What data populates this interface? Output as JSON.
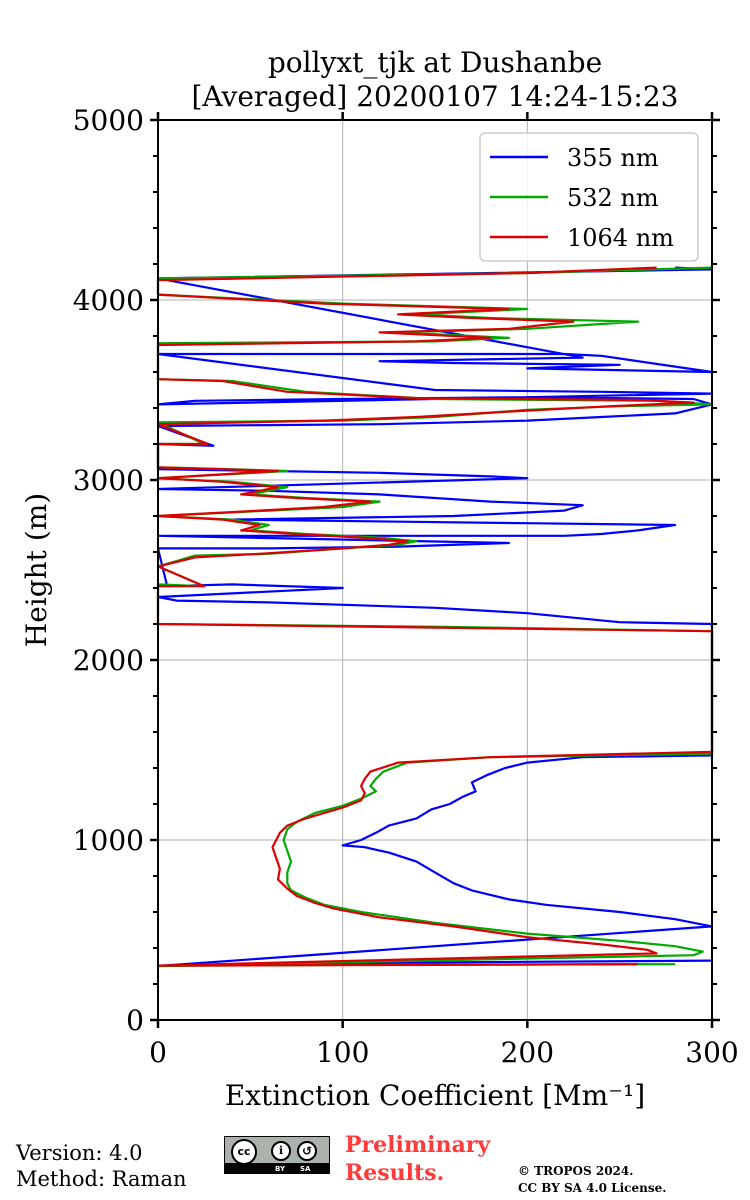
{
  "chart_data": {
    "type": "line",
    "title": "pollyxt_tjk at Dushanbe",
    "subtitle": "[Averaged] 20200107 14:24-15:23",
    "xlabel": "Extinction Coefficient [Mm⁻¹]",
    "ylabel": "Height (m)",
    "xlim": [
      0,
      300
    ],
    "ylim": [
      0,
      5000
    ],
    "xticks": [
      "0",
      "100",
      "200",
      "300"
    ],
    "yticks": [
      "0",
      "1000",
      "2000",
      "3000",
      "4000",
      "5000"
    ],
    "xtick_values": [
      0,
      100,
      200,
      300
    ],
    "ytick_values": [
      0,
      1000,
      2000,
      3000,
      4000,
      5000
    ],
    "grid": true,
    "legend_position": "top-right",
    "series": [
      {
        "name": "355 nm",
        "color": "#0000ff",
        "points": [
          [
            300,
            330
          ],
          [
            150,
            320
          ],
          [
            20,
            305
          ],
          [
            0,
            300
          ],
          [
            300,
            520
          ],
          [
            280,
            560
          ],
          [
            250,
            600
          ],
          [
            210,
            640
          ],
          [
            190,
            670
          ],
          [
            170,
            720
          ],
          [
            160,
            760
          ],
          [
            150,
            820
          ],
          [
            140,
            880
          ],
          [
            125,
            930
          ],
          [
            112,
            960
          ],
          [
            100,
            970
          ],
          [
            110,
            1000
          ],
          [
            118,
            1040
          ],
          [
            125,
            1080
          ],
          [
            140,
            1120
          ],
          [
            148,
            1170
          ],
          [
            158,
            1200
          ],
          [
            165,
            1240
          ],
          [
            172,
            1270
          ],
          [
            170,
            1320
          ],
          [
            178,
            1360
          ],
          [
            188,
            1400
          ],
          [
            200,
            1430
          ],
          [
            230,
            1460
          ],
          [
            300,
            1470
          ],
          [
            300,
            2200
          ],
          [
            250,
            2210
          ],
          [
            200,
            2260
          ],
          [
            150,
            2290
          ],
          [
            60,
            2320
          ],
          [
            10,
            2330
          ],
          [
            0,
            2350
          ],
          [
            100,
            2400
          ],
          [
            40,
            2420
          ],
          [
            5,
            2410
          ],
          [
            0,
            2620
          ],
          [
            60,
            2620
          ],
          [
            130,
            2630
          ],
          [
            190,
            2650
          ],
          [
            0,
            2690
          ],
          [
            220,
            2690
          ],
          [
            240,
            2700
          ],
          [
            260,
            2720
          ],
          [
            280,
            2750
          ],
          [
            200,
            2760
          ],
          [
            40,
            2780
          ],
          [
            160,
            2800
          ],
          [
            220,
            2830
          ],
          [
            230,
            2860
          ],
          [
            180,
            2880
          ],
          [
            150,
            2900
          ],
          [
            120,
            2920
          ],
          [
            60,
            2940
          ],
          [
            0,
            2950
          ],
          [
            200,
            3010
          ],
          [
            180,
            3020
          ],
          [
            120,
            3040
          ],
          [
            0,
            3060
          ],
          [
            0,
            3200
          ],
          [
            30,
            3190
          ],
          [
            0,
            3300
          ],
          [
            120,
            3310
          ],
          [
            200,
            3330
          ],
          [
            240,
            3350
          ],
          [
            280,
            3370
          ],
          [
            300,
            3420
          ],
          [
            290,
            3450
          ],
          [
            200,
            3460
          ],
          [
            100,
            3450
          ],
          [
            20,
            3440
          ],
          [
            0,
            3420
          ],
          [
            300,
            3480
          ],
          [
            240,
            3490
          ],
          [
            150,
            3500
          ],
          [
            0,
            3700
          ],
          [
            220,
            3700
          ],
          [
            240,
            3690
          ],
          [
            300,
            3600
          ],
          [
            200,
            3620
          ],
          [
            250,
            3640
          ],
          [
            160,
            3650
          ],
          [
            120,
            3660
          ],
          [
            230,
            3680
          ],
          [
            0,
            4120
          ],
          [
            300,
            4170
          ],
          [
            280,
            4180
          ]
        ]
      },
      {
        "name": "532 nm",
        "color": "#00aa00",
        "points": [
          [
            280,
            310
          ],
          [
            150,
            308
          ],
          [
            30,
            303
          ],
          [
            0,
            300
          ],
          [
            290,
            360
          ],
          [
            295,
            380
          ],
          [
            280,
            410
          ],
          [
            250,
            440
          ],
          [
            200,
            480
          ],
          [
            150,
            540
          ],
          [
            110,
            600
          ],
          [
            90,
            640
          ],
          [
            80,
            680
          ],
          [
            72,
            720
          ],
          [
            70,
            760
          ],
          [
            70,
            820
          ],
          [
            72,
            880
          ],
          [
            70,
            940
          ],
          [
            68,
            1000
          ],
          [
            70,
            1060
          ],
          [
            75,
            1100
          ],
          [
            85,
            1150
          ],
          [
            100,
            1190
          ],
          [
            110,
            1230
          ],
          [
            118,
            1270
          ],
          [
            115,
            1300
          ],
          [
            118,
            1340
          ],
          [
            122,
            1380
          ],
          [
            135,
            1430
          ],
          [
            180,
            1460
          ],
          [
            300,
            1480
          ],
          [
            300,
            2160
          ],
          [
            150,
            2185
          ],
          [
            0,
            2200
          ],
          [
            0,
            2420
          ],
          [
            25,
            2410
          ],
          [
            0,
            2520
          ],
          [
            10,
            2550
          ],
          [
            20,
            2580
          ],
          [
            60,
            2590
          ],
          [
            100,
            2620
          ],
          [
            130,
            2640
          ],
          [
            140,
            2660
          ],
          [
            120,
            2680
          ],
          [
            80,
            2700
          ],
          [
            50,
            2720
          ],
          [
            60,
            2750
          ],
          [
            40,
            2780
          ],
          [
            0,
            2800
          ],
          [
            60,
            2830
          ],
          [
            100,
            2850
          ],
          [
            120,
            2880
          ],
          [
            80,
            2900
          ],
          [
            50,
            2920
          ],
          [
            70,
            2960
          ],
          [
            40,
            2990
          ],
          [
            0,
            3010
          ],
          [
            70,
            3050
          ],
          [
            40,
            3060
          ],
          [
            0,
            3070
          ],
          [
            0,
            3200
          ],
          [
            25,
            3200
          ],
          [
            0,
            3320
          ],
          [
            100,
            3330
          ],
          [
            150,
            3350
          ],
          [
            200,
            3390
          ],
          [
            250,
            3410
          ],
          [
            300,
            3420
          ],
          [
            270,
            3440
          ],
          [
            150,
            3450
          ],
          [
            80,
            3490
          ],
          [
            40,
            3550
          ],
          [
            0,
            3560
          ],
          [
            0,
            3760
          ],
          [
            150,
            3770
          ],
          [
            190,
            3790
          ],
          [
            130,
            3820
          ],
          [
            200,
            3840
          ],
          [
            260,
            3880
          ],
          [
            180,
            3900
          ],
          [
            140,
            3920
          ],
          [
            200,
            3950
          ],
          [
            100,
            3980
          ],
          [
            40,
            4010
          ],
          [
            0,
            4030
          ],
          [
            0,
            4120
          ],
          [
            200,
            4150
          ],
          [
            300,
            4180
          ]
        ]
      },
      {
        "name": "1064 nm",
        "color": "#dd0000",
        "points": [
          [
            260,
            310
          ],
          [
            150,
            306
          ],
          [
            30,
            303
          ],
          [
            0,
            302
          ],
          [
            270,
            370
          ],
          [
            265,
            390
          ],
          [
            240,
            420
          ],
          [
            200,
            460
          ],
          [
            160,
            520
          ],
          [
            120,
            570
          ],
          [
            95,
            620
          ],
          [
            85,
            650
          ],
          [
            75,
            690
          ],
          [
            70,
            730
          ],
          [
            65,
            780
          ],
          [
            66,
            840
          ],
          [
            64,
            900
          ],
          [
            62,
            960
          ],
          [
            64,
            1000
          ],
          [
            66,
            1040
          ],
          [
            70,
            1080
          ],
          [
            80,
            1120
          ],
          [
            90,
            1150
          ],
          [
            100,
            1180
          ],
          [
            110,
            1220
          ],
          [
            112,
            1260
          ],
          [
            110,
            1300
          ],
          [
            112,
            1340
          ],
          [
            115,
            1380
          ],
          [
            130,
            1430
          ],
          [
            180,
            1460
          ],
          [
            300,
            1490
          ],
          [
            300,
            2160
          ],
          [
            150,
            2180
          ],
          [
            0,
            2200
          ],
          [
            0,
            2410
          ],
          [
            25,
            2410
          ],
          [
            0,
            2520
          ],
          [
            12,
            2550
          ],
          [
            20,
            2570
          ],
          [
            55,
            2590
          ],
          [
            100,
            2620
          ],
          [
            125,
            2640
          ],
          [
            135,
            2660
          ],
          [
            110,
            2680
          ],
          [
            75,
            2700
          ],
          [
            45,
            2720
          ],
          [
            55,
            2750
          ],
          [
            35,
            2780
          ],
          [
            0,
            2800
          ],
          [
            55,
            2830
          ],
          [
            90,
            2850
          ],
          [
            115,
            2880
          ],
          [
            75,
            2900
          ],
          [
            45,
            2920
          ],
          [
            65,
            2960
          ],
          [
            35,
            2990
          ],
          [
            0,
            3010
          ],
          [
            65,
            3050
          ],
          [
            35,
            3060
          ],
          [
            0,
            3070
          ],
          [
            0,
            3200
          ],
          [
            27,
            3200
          ],
          [
            0,
            3310
          ],
          [
            90,
            3330
          ],
          [
            140,
            3350
          ],
          [
            190,
            3380
          ],
          [
            245,
            3410
          ],
          [
            290,
            3430
          ],
          [
            260,
            3445
          ],
          [
            140,
            3455
          ],
          [
            70,
            3490
          ],
          [
            35,
            3550
          ],
          [
            0,
            3560
          ],
          [
            0,
            3750
          ],
          [
            140,
            3770
          ],
          [
            180,
            3790
          ],
          [
            120,
            3820
          ],
          [
            190,
            3840
          ],
          [
            225,
            3880
          ],
          [
            170,
            3900
          ],
          [
            130,
            3920
          ],
          [
            190,
            3950
          ],
          [
            90,
            3980
          ],
          [
            35,
            4010
          ],
          [
            0,
            4030
          ],
          [
            0,
            4110
          ],
          [
            200,
            4150
          ],
          [
            270,
            4180
          ]
        ]
      }
    ]
  },
  "footer": {
    "version": "Version: 4.0",
    "method": "Method: Raman",
    "preliminary_line1": "Preliminary",
    "preliminary_line2": "Results.",
    "copyright_line1": "© TROPOS 2024.",
    "copyright_line2": "CC BY SA 4.0 License.",
    "license_badge": {
      "cc": "cc",
      "by": "BY",
      "sa": "SA"
    }
  }
}
